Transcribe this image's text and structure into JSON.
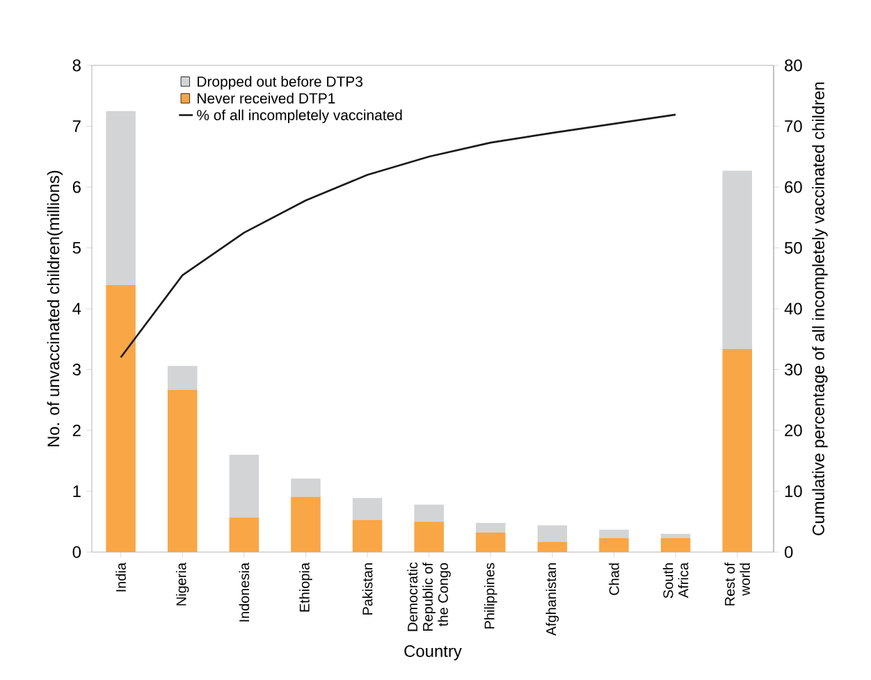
{
  "chart_data": {
    "type": "bar",
    "stacked": true,
    "xlabel": "Country",
    "ylabel": "No. of unvaccinated children(millions)",
    "y2label": "Cumulative percentage of all incompletely vaccinated children",
    "categories": [
      "India",
      "Nigeria",
      "Indonesia",
      "Ethiopia",
      "Pakistan",
      "Democratic Republic of the Congo",
      "Philippines",
      "Afghanistan",
      "Chad",
      "South Africa",
      "Rest of world"
    ],
    "series": [
      {
        "name": "Never received DTP1",
        "color": "#f9a646",
        "values": [
          4.39,
          2.67,
          0.57,
          0.91,
          0.53,
          0.5,
          0.32,
          0.17,
          0.23,
          0.23,
          3.34
        ]
      },
      {
        "name": "Dropped out before DTP3",
        "color": "#d3d4d6",
        "values": [
          2.86,
          0.39,
          1.03,
          0.3,
          0.36,
          0.28,
          0.16,
          0.27,
          0.14,
          0.07,
          2.93
        ]
      },
      {
        "name": "% of all incompletely vaccinated",
        "type": "line",
        "axis": "y2",
        "color": "#1a1a1a",
        "values": [
          32,
          45.5,
          52.5,
          57.8,
          62,
          65,
          67.3,
          68.9,
          70.4,
          71.9,
          null
        ]
      }
    ],
    "ylim": [
      0,
      8
    ],
    "yticks": [
      0,
      1,
      2,
      3,
      4,
      5,
      6,
      7,
      8
    ],
    "y2lim": [
      0,
      80
    ],
    "y2ticks": [
      0,
      10,
      20,
      30,
      40,
      50,
      60,
      70,
      80
    ],
    "legend": "top left"
  }
}
